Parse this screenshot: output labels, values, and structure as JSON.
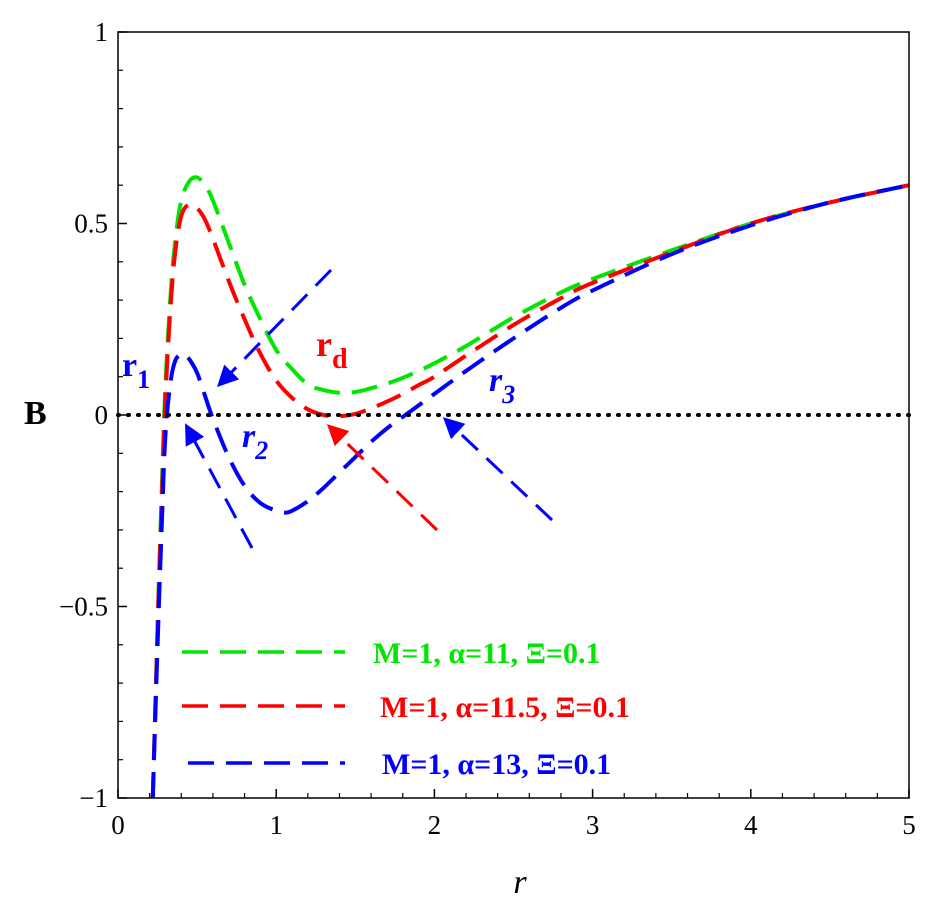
{
  "chart_data": {
    "type": "line",
    "title": "",
    "xlabel": "r",
    "ylabel": "B",
    "xlim": [
      0,
      5
    ],
    "ylim": [
      -1,
      1
    ],
    "x_ticks": [
      0,
      1,
      2,
      3,
      4,
      5
    ],
    "x_tick_labels": [
      "0",
      "1",
      "2",
      "3",
      "4",
      "5"
    ],
    "y_ticks": [
      -1,
      -0.5,
      0,
      0.5,
      1
    ],
    "y_tick_labels": [
      "−1",
      "−0.5",
      "0",
      "0.5",
      "1"
    ],
    "grid": false,
    "zero_line": {
      "y": 0,
      "style": "dotted"
    },
    "legend_position": "bottom-right",
    "series": [
      {
        "name": "M=1, α=11, Ξ=0.1",
        "color": "#00e600",
        "x": [
          0.22,
          0.25,
          0.28,
          0.3,
          0.33,
          0.36,
          0.4,
          0.45,
          0.5,
          0.55,
          0.6,
          0.7,
          0.8,
          0.9,
          1.0,
          1.1,
          1.2,
          1.3,
          1.4,
          1.5,
          1.6,
          1.7,
          1.8,
          1.9,
          2.0,
          2.2,
          2.5,
          2.8,
          3.0,
          3.5,
          4.0,
          4.5,
          5.0
        ],
        "y": [
          -1.0,
          -0.55,
          -0.15,
          0.08,
          0.3,
          0.45,
          0.56,
          0.61,
          0.62,
          0.6,
          0.56,
          0.45,
          0.34,
          0.25,
          0.17,
          0.12,
          0.08,
          0.065,
          0.058,
          0.06,
          0.07,
          0.082,
          0.097,
          0.115,
          0.135,
          0.18,
          0.255,
          0.32,
          0.355,
          0.43,
          0.5,
          0.555,
          0.6
        ]
      },
      {
        "name": "M=1, α=11.5, Ξ=0.1",
        "color": "#ff0000",
        "x": [
          0.22,
          0.25,
          0.28,
          0.3,
          0.33,
          0.36,
          0.4,
          0.45,
          0.5,
          0.55,
          0.6,
          0.7,
          0.8,
          0.9,
          1.0,
          1.1,
          1.2,
          1.3,
          1.4,
          1.5,
          1.6,
          1.7,
          1.8,
          1.9,
          2.0,
          2.2,
          2.5,
          2.8,
          3.0,
          3.5,
          4.0,
          4.5,
          5.0
        ],
        "y": [
          -1.0,
          -0.56,
          -0.18,
          0.05,
          0.27,
          0.42,
          0.52,
          0.55,
          0.54,
          0.51,
          0.46,
          0.35,
          0.25,
          0.16,
          0.09,
          0.045,
          0.015,
          0.0,
          -0.003,
          0.003,
          0.017,
          0.035,
          0.055,
          0.078,
          0.1,
          0.155,
          0.235,
          0.305,
          0.345,
          0.425,
          0.5,
          0.555,
          0.6
        ]
      },
      {
        "name": "M=1, α=13, Ξ=0.1",
        "color": "#0000ff",
        "x": [
          0.22,
          0.25,
          0.28,
          0.3,
          0.33,
          0.36,
          0.4,
          0.43,
          0.46,
          0.5,
          0.55,
          0.6,
          0.7,
          0.8,
          0.9,
          1.0,
          1.05,
          1.1,
          1.2,
          1.3,
          1.4,
          1.5,
          1.6,
          1.7,
          1.8,
          1.9,
          2.0,
          2.2,
          2.5,
          2.8,
          3.0,
          3.5,
          4.0,
          4.5,
          5.0
        ],
        "y": [
          -1.0,
          -0.6,
          -0.25,
          -0.05,
          0.08,
          0.14,
          0.16,
          0.155,
          0.14,
          0.11,
          0.05,
          -0.01,
          -0.11,
          -0.185,
          -0.23,
          -0.25,
          -0.255,
          -0.25,
          -0.225,
          -0.19,
          -0.15,
          -0.11,
          -0.07,
          -0.035,
          -0.005,
          0.025,
          0.055,
          0.115,
          0.2,
          0.28,
          0.325,
          0.42,
          0.495,
          0.555,
          0.6
        ]
      }
    ],
    "annotations": [
      {
        "label": "r",
        "sub": "1",
        "color": "#0000ff"
      },
      {
        "label": "r",
        "sub": "2",
        "color": "#0000ff"
      },
      {
        "label": "r",
        "sub": "d",
        "color": "#ff0000"
      },
      {
        "label": "r",
        "sub": "3",
        "color": "#0000ff"
      }
    ]
  }
}
